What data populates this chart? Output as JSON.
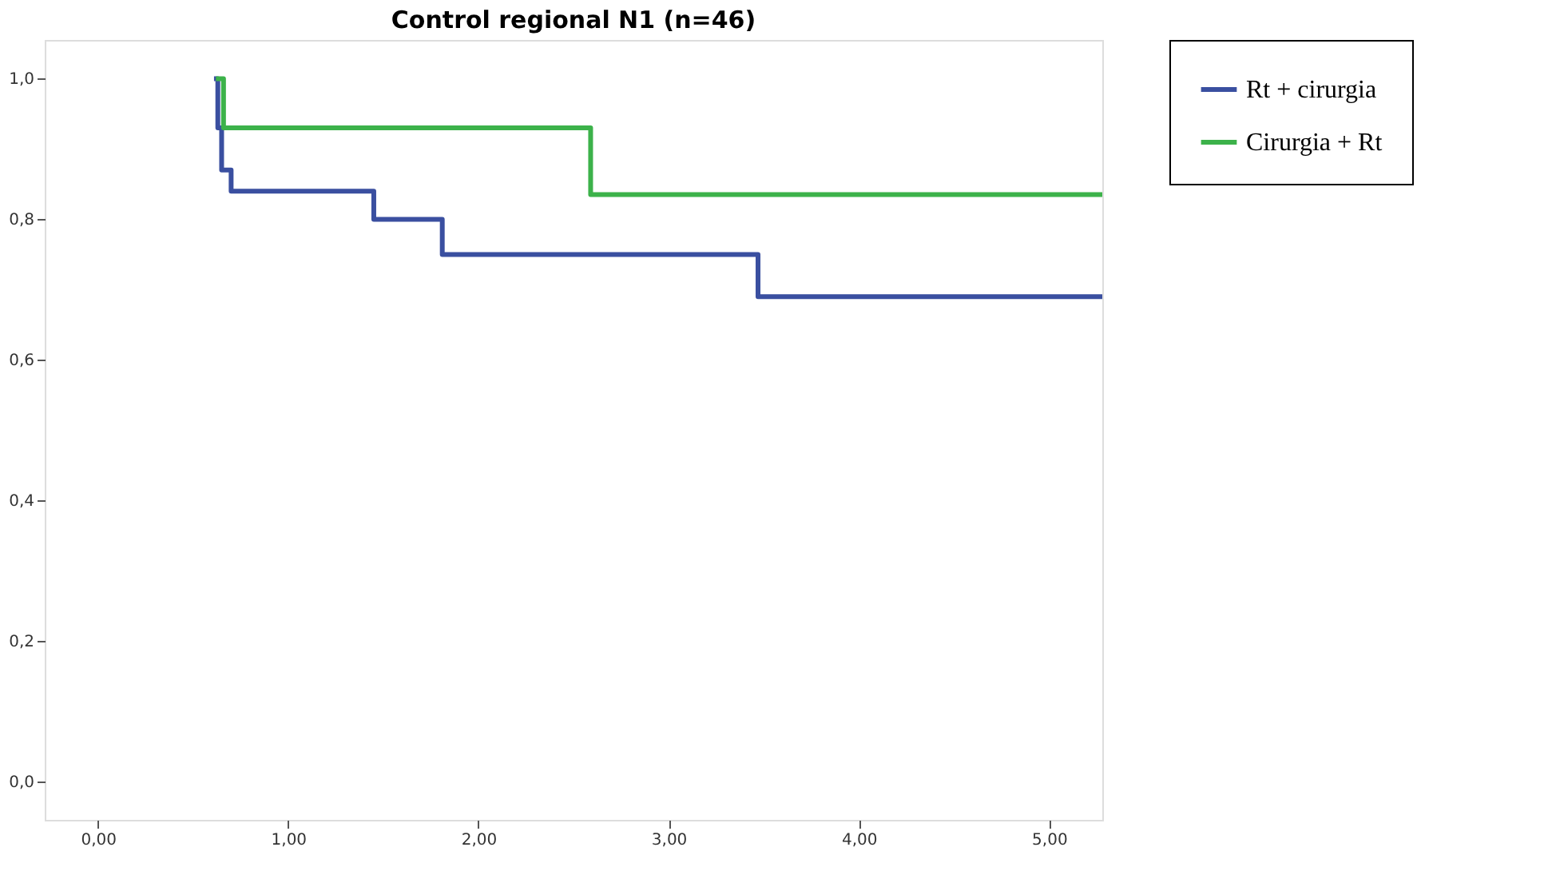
{
  "chart_data": {
    "type": "step",
    "title": "Control regional N1 (n=46)",
    "legend": "right",
    "grid": false,
    "xlim": [
      -0.28,
      5.28
    ],
    "ylim": [
      -0.054,
      1.055
    ],
    "xticks": [
      {
        "value": 0,
        "label": "0,00"
      },
      {
        "value": 1,
        "label": "1,00"
      },
      {
        "value": 2,
        "label": "2,00"
      },
      {
        "value": 3,
        "label": "3,00"
      },
      {
        "value": 4,
        "label": "4,00"
      },
      {
        "value": 5,
        "label": "5,00"
      }
    ],
    "yticks": [
      {
        "value": 0,
        "label": "0,0"
      },
      {
        "value": 0.2,
        "label": "0,2"
      },
      {
        "value": 0.4,
        "label": "0,4"
      },
      {
        "value": 0.6,
        "label": "0,6"
      },
      {
        "value": 0.8,
        "label": "0,8"
      },
      {
        "value": 1,
        "label": "1,0"
      }
    ],
    "series": [
      {
        "name": "Rt + cirurgia",
        "color": "#3a4fa0",
        "x": [
          0.61,
          0.63,
          0.65,
          0.7,
          1.45,
          1.81,
          3.47,
          5.28
        ],
        "values": [
          1.0,
          0.93,
          0.87,
          0.84,
          0.8,
          0.75,
          0.69,
          0.69
        ]
      },
      {
        "name": "Cirurgia + Rt",
        "color": "#3cb24a",
        "x": [
          0.62,
          0.66,
          2.59,
          5.28
        ],
        "values": [
          1.0,
          0.93,
          0.835,
          0.835
        ]
      }
    ]
  }
}
